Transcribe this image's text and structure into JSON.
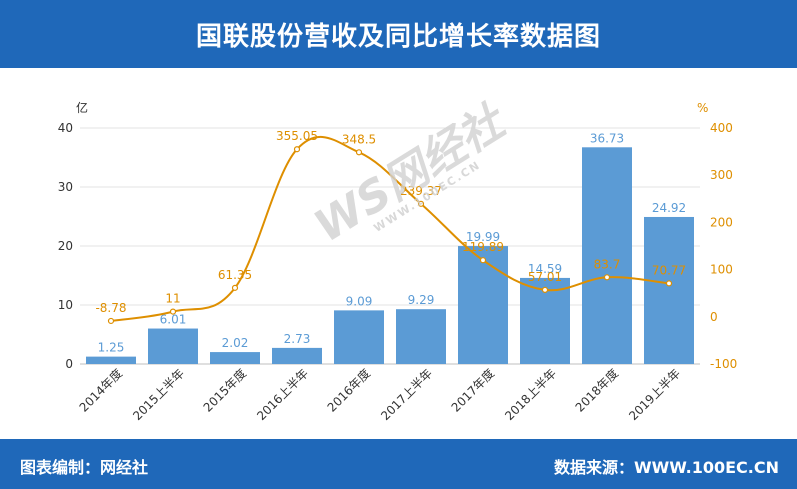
{
  "title": "国联股份营收及同比增长率数据图",
  "footer": {
    "left": "图表编制：网经社",
    "right": "数据来源：WWW.100EC.CN"
  },
  "watermark": {
    "logo": "WS网经社",
    "url": "WWW.100EC.CN"
  },
  "colors": {
    "header": "#1f68b9",
    "bar": "#5b9bd5",
    "bar_label": "#5b9bd5",
    "line": "#de8f00",
    "axis_text": "#333333"
  },
  "chart_data": {
    "type": "bar+line",
    "categories": [
      "2014年度",
      "2015上半年",
      "2015年度",
      "2016上半年",
      "2016年度",
      "2017上半年",
      "2017年度",
      "2018上半年",
      "2018年度",
      "2019上半年"
    ],
    "series": [
      {
        "type": "bar",
        "axis": "left",
        "values": [
          1.25,
          6.01,
          2.02,
          2.73,
          9.09,
          9.29,
          19.99,
          14.59,
          36.73,
          24.92
        ],
        "labels": [
          "1.25",
          "6.01",
          "2.02",
          "2.73",
          "9.09",
          "9.29",
          "19.99",
          "14.59",
          "36.73",
          "24.92"
        ]
      },
      {
        "type": "line",
        "axis": "right",
        "values": [
          -8.78,
          11,
          61.35,
          355.05,
          348.5,
          239.37,
          119.89,
          57.01,
          83.7,
          70.77
        ],
        "labels": [
          "-8.78",
          "11",
          "61.35",
          "355.05",
          "348.5",
          "239.37",
          "119.89",
          "57.01",
          "83.7",
          "70.77"
        ]
      }
    ],
    "y_left": {
      "unit": "亿",
      "min": 0,
      "max": 40,
      "ticks": [
        "0",
        "10",
        "20",
        "30",
        "40"
      ]
    },
    "y_right": {
      "unit": "%",
      "min": -100,
      "max": 400,
      "ticks": [
        "-100",
        "0",
        "100",
        "200",
        "300",
        "400"
      ]
    },
    "grid": true,
    "legend": "none"
  }
}
